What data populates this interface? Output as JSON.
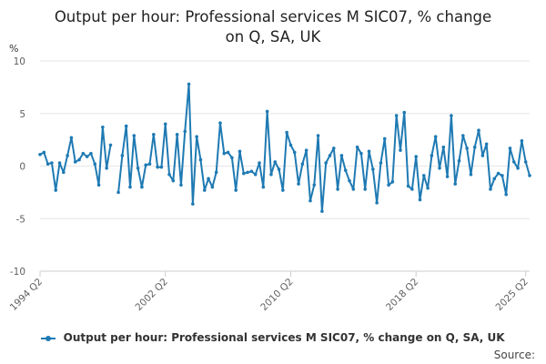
{
  "chart_data": {
    "type": "line",
    "title_lines": [
      "Output per hour: Professional services M SIC07, % change",
      "on Q, SA, UK"
    ],
    "ylabel": "%",
    "ylim": [
      -10,
      10
    ],
    "yticks": [
      -10,
      -5,
      0,
      5,
      10
    ],
    "xticks": [
      "1994 Q2",
      "2002 Q2",
      "2010 Q2",
      "2018 Q2",
      "2025 Q2"
    ],
    "xtick_index": [
      0,
      32,
      64,
      96,
      124
    ],
    "grid": true,
    "legend_position": "bottom",
    "line_color": "#1f7ab3",
    "series": [
      {
        "name": "Output per hour: Professional services M SIC07, % change on Q, SA, UK",
        "values": [
          1.1,
          1.3,
          0.2,
          0.3,
          -2.3,
          0.3,
          -0.6,
          1.0,
          2.7,
          0.4,
          0.6,
          1.2,
          0.9,
          1.2,
          0.2,
          -1.8,
          3.7,
          -0.2,
          2.0,
          null,
          -2.5,
          1.0,
          3.8,
          -2.0,
          2.9,
          -0.2,
          -2.0,
          0.1,
          0.2,
          3.0,
          -0.1,
          -0.1,
          4.0,
          -0.8,
          -1.4,
          3.0,
          -1.8,
          3.3,
          7.8,
          -3.6,
          2.8,
          0.6,
          -2.3,
          -1.2,
          -2.0,
          -0.6,
          4.1,
          1.2,
          1.3,
          0.8,
          -2.3,
          1.4,
          -0.7,
          -0.6,
          -0.5,
          -0.8,
          0.3,
          -2.0,
          5.2,
          -0.8,
          0.4,
          -0.3,
          -2.3,
          3.2,
          2.0,
          1.3,
          -1.7,
          0.2,
          1.5,
          -3.3,
          -1.8,
          2.9,
          -4.3,
          0.3,
          1.0,
          1.7,
          -2.2,
          1.0,
          -0.4,
          -1.4,
          -2.2,
          1.8,
          1.2,
          -2.2,
          1.4,
          -0.3,
          -3.5,
          0.3,
          2.6,
          -1.8,
          -1.5,
          4.8,
          1.5,
          5.1,
          -1.9,
          -2.2,
          0.9,
          -3.2,
          -0.9,
          -2.1,
          1.0,
          2.8,
          -0.2,
          1.8,
          -1.0,
          4.8,
          -1.7,
          0.5,
          2.9,
          1.7,
          -0.8,
          1.8,
          3.4,
          1.0,
          2.1,
          -2.2,
          -1.2,
          -0.7,
          -0.9,
          -2.7,
          1.7,
          0.4,
          -0.2,
          2.4,
          0.4,
          -0.9
        ]
      }
    ]
  },
  "legend": {
    "label": "Output per hour: Professional services M SIC07, % change on Q, SA, UK"
  },
  "source": {
    "label": "Source:"
  }
}
